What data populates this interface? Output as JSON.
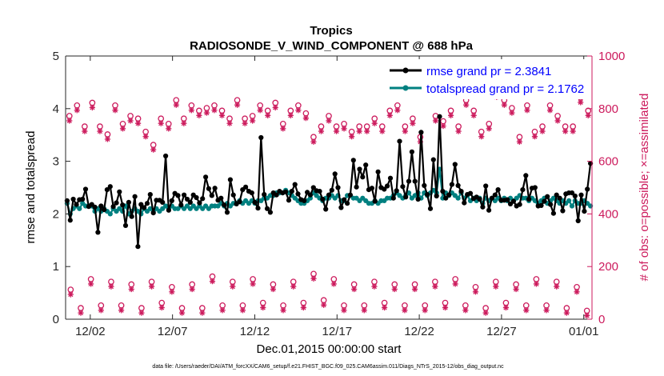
{
  "chart_data": {
    "type": "line",
    "title": "Tropics",
    "subtitle": "RADIOSONDE_V_WIND_COMPONENT @ 688 hPa",
    "xlabel": "Dec.01,2015 00:00:00 start",
    "ylabel_left": "rmse and totalspread",
    "ylabel_right": "# of obs: o=possible; ×=assimilated",
    "footer": "data file: /Users/raeder/DAI/ATM_forcXX/CAM6_setup/f.e21.FHIST_BGC.f09_025.CAM6assim.011/Diags_NTrS_2015-12/obs_diag_output.nc",
    "ylim_left": [
      0,
      5
    ],
    "ylim_right": [
      0,
      1000
    ],
    "xlim_days": [
      -0.5,
      31.5
    ],
    "left_ticks": [
      "0",
      "1",
      "2",
      "3",
      "4",
      "5"
    ],
    "right_ticks": [
      "0",
      "200",
      "400",
      "600",
      "800",
      "1000"
    ],
    "x_ticks": [
      {
        "label": "12/02",
        "day": 1
      },
      {
        "label": "12/07",
        "day": 6
      },
      {
        "label": "12/12",
        "day": 11
      },
      {
        "label": "12/17",
        "day": 16
      },
      {
        "label": "12/22",
        "day": 21
      },
      {
        "label": "12/27",
        "day": 26
      },
      {
        "label": "01/01",
        "day": 31
      }
    ],
    "colors": {
      "rmse": "#000000",
      "spread": "#008080",
      "obs": "#cc1a5c",
      "legend_text": "#0000ff"
    },
    "series": [
      {
        "name": "rmse grand pr = 2.3841",
        "axis": "left",
        "color": "#000000",
        "values": [
          2.25,
          1.88,
          2.28,
          2.18,
          2.27,
          2.28,
          2.47,
          2.14,
          2.18,
          2.13,
          1.65,
          2.15,
          2.08,
          2.46,
          2.52,
          2.14,
          2.21,
          2.42,
          2.17,
          1.78,
          2.22,
          1.95,
          2.33,
          1.38,
          2.18,
          2.12,
          2.2,
          2.37,
          2.02,
          2.26,
          2.26,
          2.22,
          3.1,
          2.07,
          2.25,
          2.39,
          2.35,
          2.17,
          2.36,
          2.28,
          2.22,
          2.36,
          2.31,
          2.21,
          2.29,
          2.7,
          2.48,
          2.35,
          2.49,
          2.26,
          2.3,
          2.17,
          2.03,
          2.65,
          2.36,
          2.19,
          2.23,
          2.46,
          2.51,
          2.43,
          2.4,
          2.22,
          2.11,
          3.45,
          2.37,
          2.1,
          2.03,
          2.4,
          2.36,
          2.43,
          2.4,
          2.42,
          2.26,
          2.43,
          2.56,
          2.38,
          2.27,
          2.25,
          2.41,
          2.36,
          2.5,
          2.44,
          2.43,
          2.28,
          2.09,
          2.36,
          2.45,
          2.76,
          2.5,
          2.12,
          2.27,
          2.2,
          2.36,
          3.02,
          2.51,
          2.85,
          2.7,
          2.93,
          2.46,
          2.49,
          2.24,
          2.8,
          2.5,
          2.47,
          2.53,
          2.68,
          2.3,
          2.44,
          3.38,
          2.52,
          2.32,
          2.62,
          3.18,
          2.62,
          2.28,
          3.55,
          2.54,
          2.37,
          2.1,
          3.03,
          2.34,
          3.85,
          2.43,
          2.3,
          2.36,
          2.56,
          2.94,
          2.54,
          2.43,
          2.21,
          2.37,
          2.39,
          2.29,
          2.32,
          2.28,
          2.13,
          2.53,
          2.07,
          2.3,
          2.36,
          2.46,
          2.26,
          2.26,
          2.27,
          2.19,
          2.24,
          2.15,
          2.18,
          2.46,
          2.73,
          2.28,
          2.49,
          2.5,
          2.15,
          2.16,
          2.24,
          2.33,
          2.18,
          2.01,
          2.36,
          2.3,
          2.06,
          2.38,
          2.4,
          2.4,
          2.34,
          1.87,
          2.36,
          2.05,
          2.47,
          2.96
        ]
      },
      {
        "name": "totalspread grand pr = 2.1762",
        "axis": "left",
        "color": "#008080",
        "values": [
          2.2,
          2.0,
          2.1,
          2.15,
          2.1,
          2.2,
          2.15,
          2.15,
          2.15,
          2.05,
          2.1,
          2.05,
          2.1,
          2.05,
          2.0,
          2.1,
          2.05,
          2.1,
          2.05,
          2.15,
          2.0,
          2.05,
          2.1,
          2.05,
          2.0,
          2.1,
          2.05,
          2.1,
          2.05,
          2.1,
          2.05,
          2.1,
          2.15,
          2.1,
          2.15,
          2.1,
          2.1,
          2.15,
          2.1,
          2.15,
          2.1,
          2.15,
          2.1,
          2.15,
          2.1,
          2.15,
          2.1,
          2.15,
          2.15,
          2.15,
          2.2,
          2.15,
          2.2,
          2.15,
          2.2,
          2.2,
          2.25,
          2.2,
          2.25,
          2.2,
          2.25,
          2.2,
          2.25,
          2.25,
          2.3,
          2.3,
          2.35,
          2.35,
          2.4,
          2.4,
          2.4,
          2.45,
          2.4,
          2.35,
          2.3,
          2.25,
          2.2,
          2.2,
          2.25,
          2.3,
          2.4,
          2.35,
          2.3,
          2.25,
          2.3,
          2.3,
          2.35,
          2.3,
          2.35,
          2.25,
          2.25,
          2.35,
          2.35,
          2.3,
          2.3,
          2.25,
          2.3,
          2.25,
          2.2,
          2.2,
          2.25,
          2.2,
          2.25,
          2.25,
          2.3,
          2.3,
          2.35,
          2.4,
          2.35,
          2.3,
          2.35,
          2.4,
          2.3,
          2.35,
          2.4,
          2.3,
          2.4,
          2.35,
          2.4,
          2.45,
          2.4,
          2.85,
          2.3,
          2.4,
          2.35,
          2.4,
          2.35,
          2.3,
          2.4,
          2.3,
          2.35,
          2.25,
          2.3,
          2.25,
          2.3,
          2.2,
          2.3,
          2.25,
          2.3,
          2.25,
          2.3,
          2.25,
          2.3,
          2.25,
          2.3,
          2.25,
          2.3,
          2.35,
          2.3,
          2.3,
          2.25,
          2.3,
          2.25,
          2.2,
          2.25,
          2.3,
          2.2,
          2.25,
          2.3,
          2.25,
          2.2,
          2.25,
          2.2,
          2.25,
          2.15,
          2.25,
          2.2,
          2.2,
          2.25,
          2.2,
          2.15
        ]
      }
    ],
    "obs_possible_high": [
      760,
      800,
      720,
      810,
      720,
      690,
      800,
      730,
      760,
      750,
      700,
      650,
      750,
      730,
      820,
      750,
      800,
      780,
      790,
      800,
      780,
      750,
      820,
      750,
      760,
      800,
      780,
      810,
      730,
      780,
      800,
      770,
      680,
      720,
      760,
      720,
      730,
      700,
      720,
      720,
      750,
      720,
      780,
      800,
      720,
      750,
      680,
      880,
      760,
      740,
      780,
      720,
      820,
      780,
      700,
      730,
      850,
      820,
      790,
      680,
      800,
      700,
      720,
      800,
      760,
      720,
      720,
      830,
      780
    ],
    "obs_possible_low": [
      100,
      30,
      140,
      40,
      130,
      40,
      120,
      30,
      130,
      50,
      110,
      30,
      120,
      30,
      150,
      40,
      130,
      40,
      140,
      50,
      120,
      40,
      130,
      50,
      160,
      60,
      140,
      40,
      120,
      40,
      130,
      50,
      120,
      40,
      120,
      40,
      130,
      50,
      140,
      40,
      110,
      30,
      130,
      50,
      120,
      40,
      140,
      40,
      130,
      30,
      110,
      20
    ],
    "legend": [
      {
        "label": "rmse grand pr = 2.3841",
        "color": "#000000"
      },
      {
        "label": "totalspread grand pr = 2.1762",
        "color": "#008080"
      }
    ]
  }
}
